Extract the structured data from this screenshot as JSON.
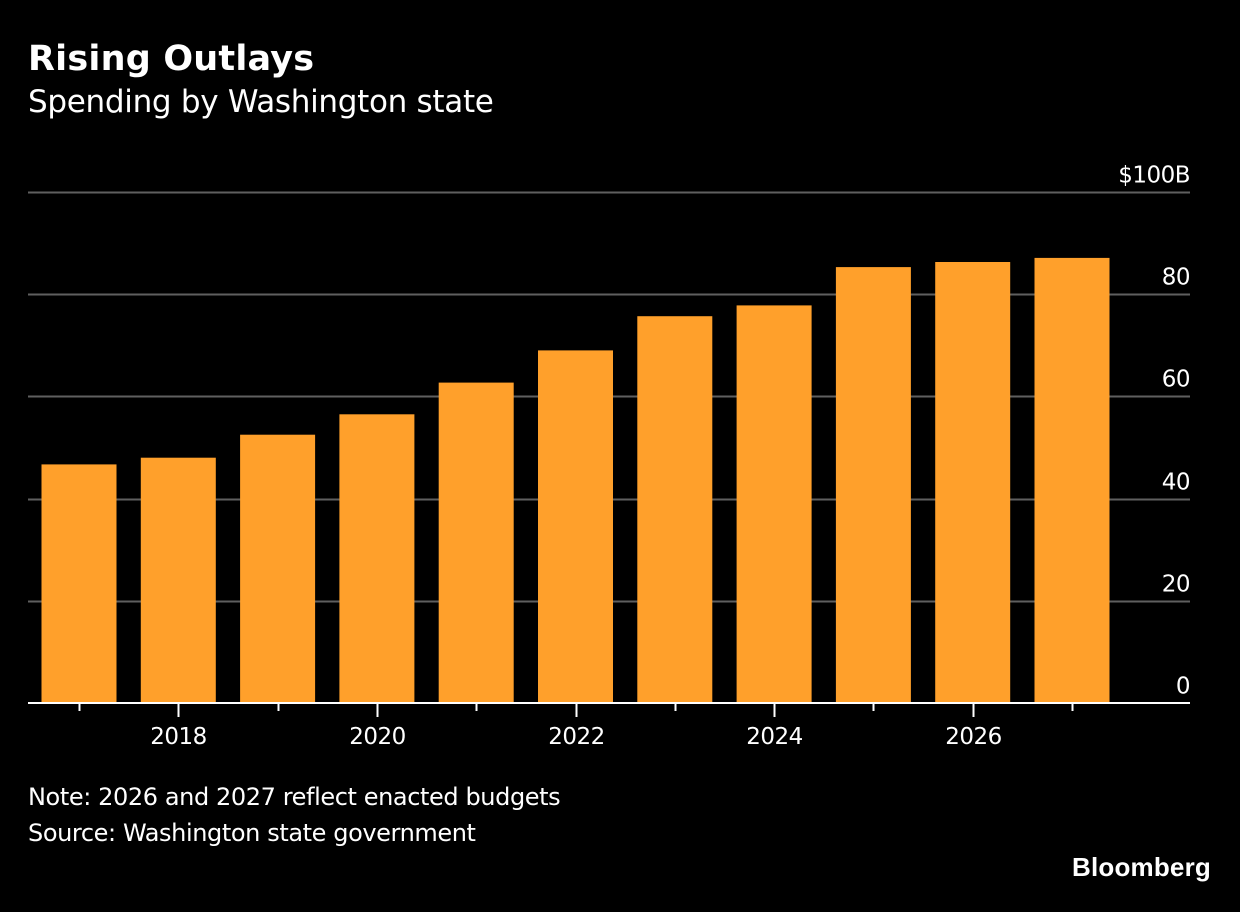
{
  "header": {
    "title": "Rising Outlays",
    "subtitle": "Spending by Washington state"
  },
  "footer": {
    "note": "Note: 2026 and 2027 reflect enacted budgets",
    "source": "Source: Washington state government",
    "brand": "Bloomberg"
  },
  "colors": {
    "background": "#000000",
    "bar": "#FFA02B",
    "gridline": "#5f5f5f",
    "baseline": "#ffffff",
    "text": "#ffffff"
  },
  "chart_data": {
    "type": "bar",
    "title": "Rising Outlays",
    "subtitle": "Spending by Washington state",
    "xlabel": "",
    "ylabel": "",
    "categories": [
      "2017",
      "2018",
      "2019",
      "2020",
      "2021",
      "2022",
      "2023",
      "2024",
      "2025",
      "2026",
      "2027"
    ],
    "values": [
      46.7,
      48.0,
      52.5,
      56.5,
      62.7,
      69.0,
      75.7,
      77.8,
      85.3,
      86.3,
      87.1
    ],
    "unit": "$B",
    "ylim": [
      0,
      100
    ],
    "y_ticks": [
      0,
      20,
      40,
      60,
      80,
      100
    ],
    "y_tick_labels": [
      "0",
      "20",
      "40",
      "60",
      "80",
      "$100B"
    ],
    "y_axis_side": "right",
    "x_tick_labels": [
      "",
      "2018",
      "",
      "2020",
      "",
      "2022",
      "",
      "2024",
      "",
      "2026",
      ""
    ],
    "grid": true,
    "legend": "none"
  }
}
